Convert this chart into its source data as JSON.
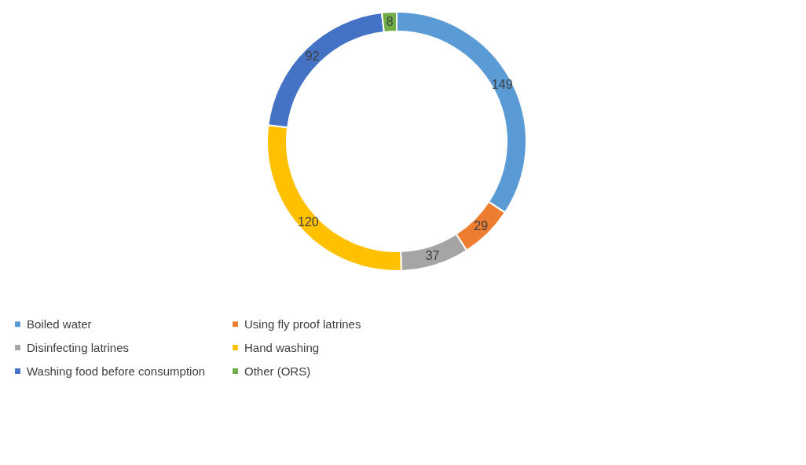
{
  "chart_data": {
    "type": "donut",
    "categories": [
      "Boiled water",
      "Using fly proof latrines",
      "Disinfecting latrines",
      "Hand washing",
      "Washing food before consumption",
      "Other (ORS)"
    ],
    "values": [
      149,
      29,
      37,
      120,
      92,
      8
    ],
    "colors": [
      "#5b9bd5",
      "#ed7d31",
      "#a5a5a5",
      "#ffc000",
      "#4472c4",
      "#70ad47"
    ],
    "data_labels": true,
    "legend": "bottom"
  }
}
